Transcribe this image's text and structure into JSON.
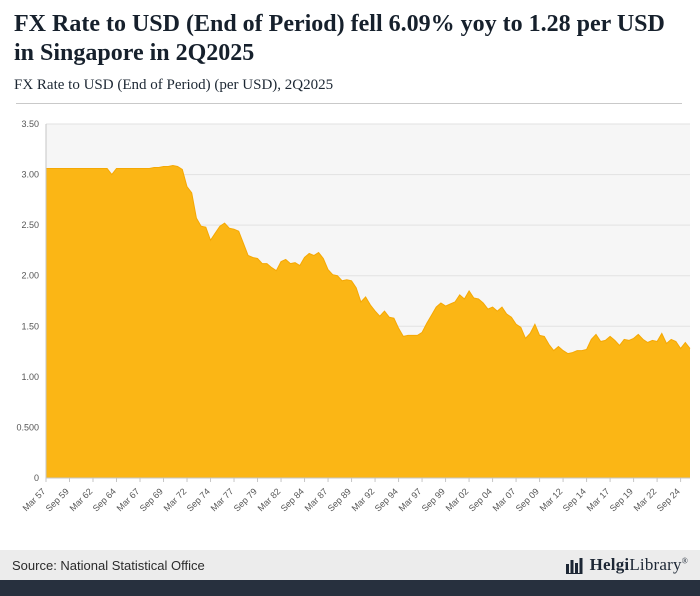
{
  "header": {
    "title": "FX Rate to USD (End of Period) fell 6.09% yoy to 1.28 per USD in Singapore in 2Q2025",
    "subtitle": "FX Rate to USD (End of Period) (per USD), 2Q2025"
  },
  "chart_data": {
    "type": "area",
    "title": "FX Rate to USD (End of Period) (per USD), 2Q2025",
    "ylabel": "",
    "xlabel": "",
    "ylim": [
      0,
      3.5
    ],
    "grid": true,
    "legend": "none",
    "y_tick_labels": [
      "0",
      "0.500",
      "1.00",
      "1.50",
      "2.00",
      "2.50",
      "3.00",
      "3.50"
    ],
    "x_labels": [
      "Mar 57",
      "Sep 59",
      "Mar 62",
      "Sep 64",
      "Mar 67",
      "Sep 69",
      "Mar 72",
      "Sep 74",
      "Mar 77",
      "Sep 79",
      "Mar 82",
      "Sep 84",
      "Mar 87",
      "Sep 89",
      "Mar 92",
      "Sep 94",
      "Mar 97",
      "Sep 99",
      "Mar 02",
      "Sep 04",
      "Mar 07",
      "Sep 09",
      "Mar 12",
      "Sep 14",
      "Mar 17",
      "Sep 19",
      "Mar 22",
      "Sep 24"
    ],
    "label_every": 5,
    "values": [
      3.06,
      3.06,
      3.06,
      3.06,
      3.06,
      3.06,
      3.06,
      3.06,
      3.06,
      3.06,
      3.06,
      3.06,
      3.06,
      3.06,
      3.0,
      3.06,
      3.06,
      3.06,
      3.06,
      3.06,
      3.06,
      3.06,
      3.06,
      3.07,
      3.07,
      3.08,
      3.08,
      3.09,
      3.08,
      3.05,
      2.88,
      2.82,
      2.57,
      2.49,
      2.48,
      2.35,
      2.42,
      2.49,
      2.52,
      2.47,
      2.46,
      2.44,
      2.32,
      2.2,
      2.18,
      2.17,
      2.12,
      2.12,
      2.08,
      2.05,
      2.14,
      2.16,
      2.12,
      2.13,
      2.1,
      2.18,
      2.22,
      2.2,
      2.23,
      2.17,
      2.06,
      2.01,
      2.0,
      1.95,
      1.96,
      1.95,
      1.88,
      1.74,
      1.79,
      1.71,
      1.65,
      1.6,
      1.65,
      1.59,
      1.58,
      1.48,
      1.4,
      1.41,
      1.41,
      1.41,
      1.44,
      1.53,
      1.61,
      1.69,
      1.73,
      1.7,
      1.72,
      1.74,
      1.81,
      1.77,
      1.85,
      1.78,
      1.77,
      1.73,
      1.67,
      1.69,
      1.65,
      1.69,
      1.62,
      1.59,
      1.52,
      1.49,
      1.38,
      1.43,
      1.52,
      1.41,
      1.4,
      1.32,
      1.26,
      1.3,
      1.26,
      1.23,
      1.24,
      1.26,
      1.26,
      1.27,
      1.37,
      1.42,
      1.35,
      1.36,
      1.4,
      1.36,
      1.31,
      1.37,
      1.36,
      1.38,
      1.42,
      1.37,
      1.34,
      1.36,
      1.35,
      1.43,
      1.33,
      1.37,
      1.35,
      1.28,
      1.34,
      1.28
    ],
    "fill_color": "#FBB615",
    "line_color": "#F5A804",
    "plot_bg": "#f6f6f6",
    "grid_color": "#e2e2e2",
    "axis_color": "#c6c6c6",
    "tick_text_color": "#555555"
  },
  "footer": {
    "source": "Source: National Statistical Office",
    "logo_bold": "Helgi",
    "logo_regular": "Library",
    "logo_mark": "®"
  }
}
